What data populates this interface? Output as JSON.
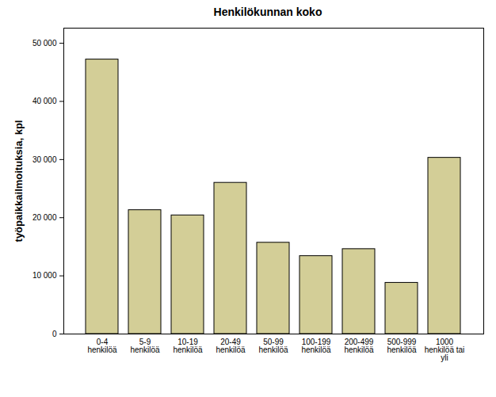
{
  "chart_data": {
    "type": "bar",
    "title": "Henkilökunnan koko",
    "y_label": "työpaikkailmoituksia, kpl",
    "categories": [
      "0-4 henkilöä",
      "5-9 henkilöä",
      "10-19 henkilöä",
      "20-49 henkilöä",
      "50-99 henkilöä",
      "100-199 henkilöä",
      "200-499 henkilöä",
      "500-999 henkilöä",
      "1000 henkilöä tai yli"
    ],
    "values": [
      47200,
      21300,
      20400,
      26000,
      15700,
      13400,
      14600,
      8800,
      30300
    ],
    "color": "#d3ce97",
    "ylim": [
      0,
      52600
    ],
    "yticks": [
      0,
      {
        "value": 10000,
        "label": "10 000"
      },
      {
        "value": 20000,
        "label": "20 000"
      },
      {
        "value": 30000,
        "label": "30 000"
      },
      {
        "value": 40000,
        "label": "40 000"
      },
      {
        "value": 50000,
        "label": "50 000"
      }
    ],
    "grid": false
  }
}
